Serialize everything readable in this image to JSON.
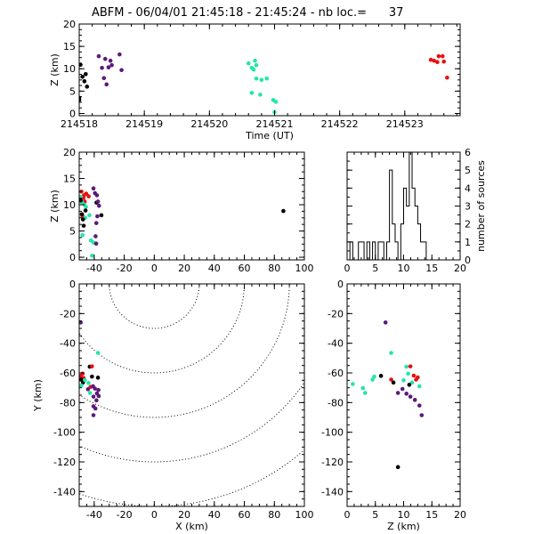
{
  "title": "ABFM - 06/04/01 21:45:18 - 21:45:24 - nb loc.=      37",
  "colors": {
    "black": "#000000",
    "purple": "#5a1a7a",
    "cyan": "#22e6a8",
    "red": "#e81010"
  },
  "chart_data": [
    {
      "type": "scatter",
      "id": "time-height",
      "xlabel": "Time (UT)",
      "ylabel": "Z (km)",
      "xlim": [
        214518,
        214523.85
      ],
      "ylim": [
        -0.5,
        20
      ],
      "xticks": [
        "214518",
        "214519",
        "214520",
        "214521",
        "214522",
        "214523"
      ],
      "yticks": [
        "0",
        "5",
        "10",
        "15",
        "20"
      ],
      "points": [
        {
          "x": 214518.02,
          "y": 10.9,
          "c": "black"
        },
        {
          "x": 214518.05,
          "y": 8.2,
          "c": "black"
        },
        {
          "x": 214518.08,
          "y": 7.2,
          "c": "black"
        },
        {
          "x": 214518.1,
          "y": 8.8,
          "c": "black"
        },
        {
          "x": 214518.12,
          "y": 6.0,
          "c": "black"
        },
        {
          "x": 214518.0,
          "y": 3.5,
          "c": "black"
        },
        {
          "x": 214518.0,
          "y": 3.0,
          "c": "black"
        },
        {
          "x": 214518.3,
          "y": 12.8,
          "c": "purple"
        },
        {
          "x": 214518.35,
          "y": 10.2,
          "c": "purple"
        },
        {
          "x": 214518.38,
          "y": 7.9,
          "c": "purple"
        },
        {
          "x": 214518.4,
          "y": 12.2,
          "c": "purple"
        },
        {
          "x": 214518.45,
          "y": 10.3,
          "c": "purple"
        },
        {
          "x": 214518.48,
          "y": 11.8,
          "c": "purple"
        },
        {
          "x": 214518.5,
          "y": 10.8,
          "c": "purple"
        },
        {
          "x": 214518.42,
          "y": 6.5,
          "c": "purple"
        },
        {
          "x": 214518.62,
          "y": 13.2,
          "c": "purple"
        },
        {
          "x": 214518.65,
          "y": 9.7,
          "c": "purple"
        },
        {
          "x": 214520.6,
          "y": 11.2,
          "c": "cyan"
        },
        {
          "x": 214520.65,
          "y": 10.2,
          "c": "cyan"
        },
        {
          "x": 214520.7,
          "y": 11.8,
          "c": "cyan"
        },
        {
          "x": 214520.72,
          "y": 10.8,
          "c": "cyan"
        },
        {
          "x": 214520.68,
          "y": 9.8,
          "c": "cyan"
        },
        {
          "x": 214520.72,
          "y": 7.8,
          "c": "cyan"
        },
        {
          "x": 214520.8,
          "y": 7.5,
          "c": "cyan"
        },
        {
          "x": 214520.88,
          "y": 7.8,
          "c": "cyan"
        },
        {
          "x": 214520.65,
          "y": 4.6,
          "c": "cyan"
        },
        {
          "x": 214520.78,
          "y": 4.2,
          "c": "cyan"
        },
        {
          "x": 214520.98,
          "y": 3.0,
          "c": "cyan"
        },
        {
          "x": 214521.02,
          "y": 2.6,
          "c": "cyan"
        },
        {
          "x": 214521.0,
          "y": 0.3,
          "c": "cyan"
        },
        {
          "x": 214523.4,
          "y": 12.0,
          "c": "red"
        },
        {
          "x": 214523.45,
          "y": 11.8,
          "c": "red"
        },
        {
          "x": 214523.5,
          "y": 11.5,
          "c": "red"
        },
        {
          "x": 214523.52,
          "y": 12.8,
          "c": "red"
        },
        {
          "x": 214523.58,
          "y": 12.8,
          "c": "red"
        },
        {
          "x": 214523.6,
          "y": 11.6,
          "c": "red"
        },
        {
          "x": 214523.65,
          "y": 8.0,
          "c": "red"
        }
      ]
    },
    {
      "type": "scatter",
      "id": "x-height",
      "xlabel": "",
      "ylabel": "Z (km)",
      "xlim": [
        -50,
        100
      ],
      "ylim": [
        -0.5,
        20
      ],
      "xticks": [
        "-40",
        "-20",
        "0",
        "20",
        "40",
        "60",
        "80",
        "100"
      ],
      "yticks": [
        "0",
        "5",
        "10",
        "15",
        "20"
      ],
      "points": [
        {
          "x": -48.5,
          "y": 12.5,
          "c": "red"
        },
        {
          "x": -46.8,
          "y": 11.8,
          "c": "red"
        },
        {
          "x": -45.3,
          "y": 12.1,
          "c": "red"
        },
        {
          "x": -47.2,
          "y": 11.3,
          "c": "red"
        },
        {
          "x": -46.3,
          "y": 10.6,
          "c": "red"
        },
        {
          "x": -43.7,
          "y": 11.6,
          "c": "red"
        },
        {
          "x": -47.9,
          "y": 7.9,
          "c": "red"
        },
        {
          "x": -48.2,
          "y": 10.5,
          "c": "cyan"
        },
        {
          "x": -46.5,
          "y": 10.0,
          "c": "cyan"
        },
        {
          "x": -45.5,
          "y": 9.6,
          "c": "cyan"
        },
        {
          "x": -43.2,
          "y": 8.0,
          "c": "cyan"
        },
        {
          "x": -46.0,
          "y": 7.5,
          "c": "cyan"
        },
        {
          "x": -47.8,
          "y": 4.2,
          "c": "cyan"
        },
        {
          "x": -42.2,
          "y": 3.2,
          "c": "cyan"
        },
        {
          "x": -40.5,
          "y": 2.8,
          "c": "cyan"
        },
        {
          "x": -41.5,
          "y": 0.3,
          "c": "cyan"
        },
        {
          "x": -49.0,
          "y": 11.5,
          "c": "cyan"
        },
        {
          "x": -49.0,
          "y": 10.8,
          "c": "black"
        },
        {
          "x": -48.2,
          "y": 8.2,
          "c": "black"
        },
        {
          "x": -47.5,
          "y": 7.2,
          "c": "black"
        },
        {
          "x": -45.8,
          "y": 8.9,
          "c": "black"
        },
        {
          "x": -47.0,
          "y": 6.0,
          "c": "black"
        },
        {
          "x": -38.5,
          "y": 10.4,
          "c": "black"
        },
        {
          "x": -35.2,
          "y": 8.0,
          "c": "black"
        },
        {
          "x": -40.5,
          "y": 13.1,
          "c": "purple"
        },
        {
          "x": -39.5,
          "y": 12.2,
          "c": "purple"
        },
        {
          "x": -38.2,
          "y": 11.8,
          "c": "purple"
        },
        {
          "x": -37.5,
          "y": 10.6,
          "c": "purple"
        },
        {
          "x": -36.8,
          "y": 9.8,
          "c": "purple"
        },
        {
          "x": -37.9,
          "y": 7.8,
          "c": "purple"
        },
        {
          "x": -38.6,
          "y": 6.5,
          "c": "purple"
        },
        {
          "x": -39.1,
          "y": 4.0,
          "c": "purple"
        },
        {
          "x": -38.7,
          "y": 2.6,
          "c": "purple"
        },
        {
          "x": 86,
          "y": 8.8,
          "c": "black"
        }
      ]
    },
    {
      "type": "bar",
      "id": "height-histogram",
      "xlabel": "",
      "ylabel": "number of sources",
      "xlim": [
        0,
        20
      ],
      "ylim": [
        0,
        6
      ],
      "xticks": [
        "0",
        "5",
        "10",
        "15",
        "20"
      ],
      "yticks": [
        "0",
        "1",
        "2",
        "3",
        "4",
        "5",
        "6"
      ],
      "bin_width": 0.5,
      "bin_starts": [
        0.0,
        0.5,
        1.0,
        1.5,
        2.0,
        2.5,
        3.0,
        3.5,
        4.0,
        4.5,
        5.0,
        5.5,
        6.0,
        6.5,
        7.0,
        7.5,
        8.0,
        8.5,
        9.0,
        9.5,
        10.0,
        10.5,
        11.0,
        11.5,
        12.0,
        12.5,
        13.0,
        13.5,
        14.0,
        14.5
      ],
      "counts": [
        0,
        1,
        0,
        0,
        1,
        1,
        0,
        1,
        0,
        1,
        0,
        1,
        1,
        0,
        1,
        5,
        2,
        1,
        0,
        2,
        4,
        3,
        6,
        4,
        3,
        2,
        1,
        1,
        0,
        0
      ]
    },
    {
      "type": "scatter",
      "id": "plan-view",
      "xlabel": "X (km)",
      "ylabel": "Y (km)",
      "xlim": [
        -50,
        100
      ],
      "ylim": [
        -150,
        0
      ],
      "xticks": [
        "-40",
        "-20",
        "0",
        "20",
        "40",
        "60",
        "80",
        "100"
      ],
      "yticks": [
        "-140",
        "-120",
        "-100",
        "-80",
        "-60",
        "-40",
        "-20",
        "0"
      ],
      "range_rings_km": [
        30,
        60,
        90,
        120,
        150
      ],
      "ring_center": [
        0,
        0
      ],
      "points": [
        {
          "x": -49.0,
          "y": -26.0,
          "c": "purple"
        },
        {
          "x": -37.5,
          "y": -46.5,
          "c": "cyan"
        },
        {
          "x": -43.0,
          "y": -55.8,
          "c": "black"
        },
        {
          "x": -41.5,
          "y": -55.6,
          "c": "red"
        },
        {
          "x": -47.8,
          "y": -60.5,
          "c": "red"
        },
        {
          "x": -49.0,
          "y": -62.0,
          "c": "red"
        },
        {
          "x": -47.0,
          "y": -63.5,
          "c": "red"
        },
        {
          "x": -48.8,
          "y": -64.5,
          "c": "black"
        },
        {
          "x": -47.5,
          "y": -66.5,
          "c": "black"
        },
        {
          "x": -46.2,
          "y": -64.8,
          "c": "cyan"
        },
        {
          "x": -48.5,
          "y": -68.5,
          "c": "cyan"
        },
        {
          "x": -43.8,
          "y": -66.8,
          "c": "cyan"
        },
        {
          "x": -37.5,
          "y": -63.2,
          "c": "black"
        },
        {
          "x": -42.5,
          "y": -69.5,
          "c": "red"
        },
        {
          "x": -44.2,
          "y": -71.0,
          "c": "purple"
        },
        {
          "x": -40.8,
          "y": -69.0,
          "c": "purple"
        },
        {
          "x": -39.5,
          "y": -70.6,
          "c": "purple"
        },
        {
          "x": -37.2,
          "y": -71.5,
          "c": "purple"
        },
        {
          "x": -38.2,
          "y": -73.8,
          "c": "purple"
        },
        {
          "x": -37.0,
          "y": -75.6,
          "c": "purple"
        },
        {
          "x": -40.5,
          "y": -76.0,
          "c": "purple"
        },
        {
          "x": -38.5,
          "y": -78.5,
          "c": "purple"
        },
        {
          "x": -40.5,
          "y": -82.5,
          "c": "purple"
        },
        {
          "x": -39.2,
          "y": -84.0,
          "c": "purple"
        },
        {
          "x": -40.5,
          "y": -88.5,
          "c": "purple"
        },
        {
          "x": -41.5,
          "y": -62.5,
          "c": "black"
        },
        {
          "x": -42.8,
          "y": -73.5,
          "c": "cyan"
        }
      ]
    },
    {
      "type": "scatter",
      "id": "height-plan",
      "xlabel": "Z (km)",
      "ylabel": "",
      "xlim": [
        0,
        20
      ],
      "ylim": [
        -150,
        0
      ],
      "xticks": [
        "0",
        "5",
        "10",
        "15",
        "20"
      ],
      "yticks": [
        "-140",
        "-120",
        "-100",
        "-80",
        "-60",
        "-40",
        "-20",
        "0"
      ],
      "points": [
        {
          "x": 6.8,
          "y": -26.0,
          "c": "purple"
        },
        {
          "x": 7.8,
          "y": -46.5,
          "c": "cyan"
        },
        {
          "x": 1.0,
          "y": -67.5,
          "c": "cyan"
        },
        {
          "x": 2.8,
          "y": -70.2,
          "c": "cyan"
        },
        {
          "x": 3.2,
          "y": -73.5,
          "c": "cyan"
        },
        {
          "x": 4.5,
          "y": -64.5,
          "c": "cyan"
        },
        {
          "x": 4.8,
          "y": -62.5,
          "c": "cyan"
        },
        {
          "x": 6.0,
          "y": -62.0,
          "c": "black"
        },
        {
          "x": 7.8,
          "y": -64.5,
          "c": "red"
        },
        {
          "x": 8.2,
          "y": -66.5,
          "c": "black"
        },
        {
          "x": 10.5,
          "y": -55.8,
          "c": "cyan"
        },
        {
          "x": 11.2,
          "y": -55.6,
          "c": "red"
        },
        {
          "x": 10.8,
          "y": -60.5,
          "c": "cyan"
        },
        {
          "x": 11.8,
          "y": -61.8,
          "c": "red"
        },
        {
          "x": 12.5,
          "y": -63.0,
          "c": "red"
        },
        {
          "x": 12.2,
          "y": -64.5,
          "c": "red"
        },
        {
          "x": 11.5,
          "y": -66.5,
          "c": "cyan"
        },
        {
          "x": 11.0,
          "y": -68.0,
          "c": "black"
        },
        {
          "x": 12.8,
          "y": -69.0,
          "c": "cyan"
        },
        {
          "x": 9.8,
          "y": -70.8,
          "c": "purple"
        },
        {
          "x": 9.0,
          "y": -73.5,
          "c": "purple"
        },
        {
          "x": 10.5,
          "y": -74.0,
          "c": "purple"
        },
        {
          "x": 11.2,
          "y": -76.0,
          "c": "purple"
        },
        {
          "x": 12.0,
          "y": -78.2,
          "c": "purple"
        },
        {
          "x": 12.8,
          "y": -82.0,
          "c": "purple"
        },
        {
          "x": 13.2,
          "y": -88.5,
          "c": "purple"
        },
        {
          "x": 10.0,
          "y": -65.0,
          "c": "cyan"
        },
        {
          "x": 9.0,
          "y": -123.5,
          "c": "black"
        }
      ]
    }
  ]
}
